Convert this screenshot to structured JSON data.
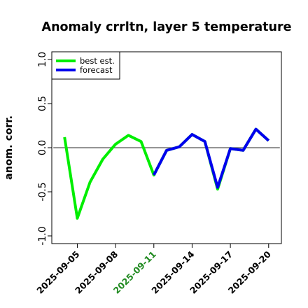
{
  "chart_data": {
    "type": "line",
    "title": "Anomaly crrltn, layer 5 temperature",
    "xlabel": "",
    "ylabel": "anom. corr.",
    "ylim": [
      -1.0,
      1.0
    ],
    "yticks": [
      -1.0,
      -0.5,
      0.0,
      0.5,
      1.0
    ],
    "ytick_labels": [
      "-1.0",
      "-0.5",
      "0.0",
      "0.5",
      "1.0"
    ],
    "x_dates": [
      "2025-09-04",
      "2025-09-05",
      "2025-09-06",
      "2025-09-07",
      "2025-09-08",
      "2025-09-09",
      "2025-09-10",
      "2025-09-11",
      "2025-09-12",
      "2025-09-13",
      "2025-09-14",
      "2025-09-15",
      "2025-09-16",
      "2025-09-17",
      "2025-09-18",
      "2025-09-19",
      "2025-09-20"
    ],
    "xlim": [
      "2025-09-03",
      "2025-09-21"
    ],
    "xticks": [
      "2025-09-05",
      "2025-09-08",
      "2025-09-11",
      "2025-09-14",
      "2025-09-17",
      "2025-09-20"
    ],
    "xtick_colors": [
      "#000000",
      "#000000",
      "#228B22",
      "#000000",
      "#000000",
      "#000000"
    ],
    "reference_line": 0.0,
    "series": [
      {
        "name": "best est.",
        "color": "#00ee00",
        "values": [
          0.12,
          -0.8,
          -0.39,
          -0.13,
          0.04,
          0.14,
          0.07,
          -0.31,
          -0.03,
          0.01,
          0.15,
          0.07,
          -0.47,
          -0.01,
          -0.03,
          0.21,
          0.08
        ]
      },
      {
        "name": "forecast",
        "color": "#0000ee",
        "values": [
          null,
          null,
          null,
          null,
          null,
          null,
          null,
          -0.31,
          -0.03,
          0.01,
          0.15,
          0.07,
          -0.45,
          -0.01,
          -0.03,
          0.21,
          0.08
        ]
      }
    ],
    "legend_position": "top-left",
    "grid": false
  }
}
